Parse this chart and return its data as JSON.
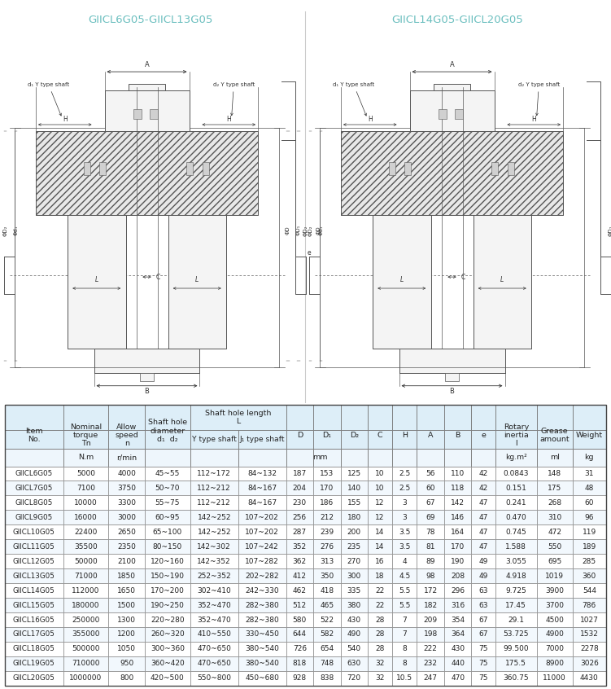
{
  "title_left": "GIICL6G05-GIICL13G05",
  "title_right": "GIICL14G05-GIICL20G05",
  "title_color": "#6bbfbf",
  "rows": [
    [
      "GIICL6G05",
      "5000",
      "4000",
      "45~55",
      "112~172",
      "84~132",
      "187",
      "153",
      "125",
      "10",
      "2.5",
      "56",
      "110",
      "42",
      "0.0843",
      "148",
      "31"
    ],
    [
      "GIICL7G05",
      "7100",
      "3750",
      "50~70",
      "112~212",
      "84~167",
      "204",
      "170",
      "140",
      "10",
      "2.5",
      "60",
      "118",
      "42",
      "0.151",
      "175",
      "48"
    ],
    [
      "GIICL8G05",
      "10000",
      "3300",
      "55~75",
      "112~212",
      "84~167",
      "230",
      "186",
      "155",
      "12",
      "3",
      "67",
      "142",
      "47",
      "0.241",
      "268",
      "60"
    ],
    [
      "GIICL9G05",
      "16000",
      "3000",
      "60~95",
      "142~252",
      "107~202",
      "256",
      "212",
      "180",
      "12",
      "3",
      "69",
      "146",
      "47",
      "0.470",
      "310",
      "96"
    ],
    [
      "GIICL10G05",
      "22400",
      "2650",
      "65~100",
      "142~252",
      "107~202",
      "287",
      "239",
      "200",
      "14",
      "3.5",
      "78",
      "164",
      "47",
      "0.745",
      "472",
      "119"
    ],
    [
      "GIICL11G05",
      "35500",
      "2350",
      "80~150",
      "142~302",
      "107~242",
      "352",
      "276",
      "235",
      "14",
      "3.5",
      "81",
      "170",
      "47",
      "1.588",
      "550",
      "189"
    ],
    [
      "GIICL12G05",
      "50000",
      "2100",
      "120~160",
      "142~352",
      "107~282",
      "362",
      "313",
      "270",
      "16",
      "4",
      "89",
      "190",
      "49",
      "3.055",
      "695",
      "285"
    ],
    [
      "GIICL13G05",
      "71000",
      "1850",
      "150~190",
      "252~352",
      "202~282",
      "412",
      "350",
      "300",
      "18",
      "4.5",
      "98",
      "208",
      "49",
      "4.918",
      "1019",
      "360"
    ],
    [
      "GIICL14G05",
      "112000",
      "1650",
      "170~200",
      "302~410",
      "242~330",
      "462",
      "418",
      "335",
      "22",
      "5.5",
      "172",
      "296",
      "63",
      "9.725",
      "3900",
      "544"
    ],
    [
      "GIICL15G05",
      "180000",
      "1500",
      "190~250",
      "352~470",
      "282~380",
      "512",
      "465",
      "380",
      "22",
      "5.5",
      "182",
      "316",
      "63",
      "17.45",
      "3700",
      "786"
    ],
    [
      "GIICL16G05",
      "250000",
      "1300",
      "220~280",
      "352~470",
      "282~380",
      "580",
      "522",
      "430",
      "28",
      "7",
      "209",
      "354",
      "67",
      "29.1",
      "4500",
      "1027"
    ],
    [
      "GIICL17G05",
      "355000",
      "1200",
      "260~320",
      "410~550",
      "330~450",
      "644",
      "582",
      "490",
      "28",
      "7",
      "198",
      "364",
      "67",
      "53.725",
      "4900",
      "1532"
    ],
    [
      "GIICL18G05",
      "500000",
      "1050",
      "300~360",
      "470~650",
      "380~540",
      "726",
      "654",
      "540",
      "28",
      "8",
      "222",
      "430",
      "75",
      "99.500",
      "7000",
      "2278"
    ],
    [
      "GIICL19G05",
      "710000",
      "950",
      "360~420",
      "470~650",
      "380~540",
      "818",
      "748",
      "630",
      "32",
      "8",
      "232",
      "440",
      "75",
      "175.5",
      "8900",
      "3026"
    ],
    [
      "GIICL20G05",
      "1000000",
      "800",
      "420~500",
      "550~800",
      "450~680",
      "928",
      "838",
      "720",
      "32",
      "10.5",
      "247",
      "470",
      "75",
      "360.75",
      "11000",
      "4430"
    ]
  ],
  "bg_white": "#ffffff",
  "bg_header": "#ddeef8",
  "lc": "#555555",
  "ac": "#333333",
  "hc": "#222222"
}
